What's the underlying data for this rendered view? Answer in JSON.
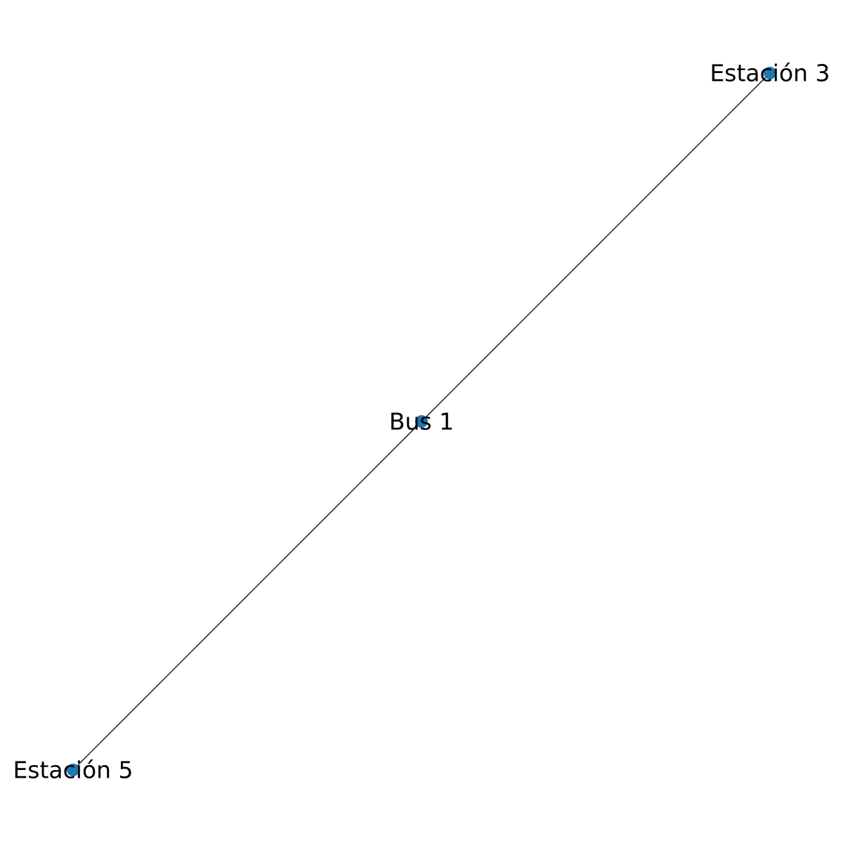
{
  "graph": {
    "node_color": "#1f77b4",
    "edge_color": "#000000",
    "nodes": [
      {
        "id": "estacion-3",
        "label": "Estación 3"
      },
      {
        "id": "bus-1",
        "label": "Bus 1"
      },
      {
        "id": "estacion-5",
        "label": "Estación 5"
      }
    ],
    "edges": [
      {
        "source": "bus-1",
        "target": "estacion-3"
      },
      {
        "source": "bus-1",
        "target": "estacion-5"
      }
    ]
  }
}
